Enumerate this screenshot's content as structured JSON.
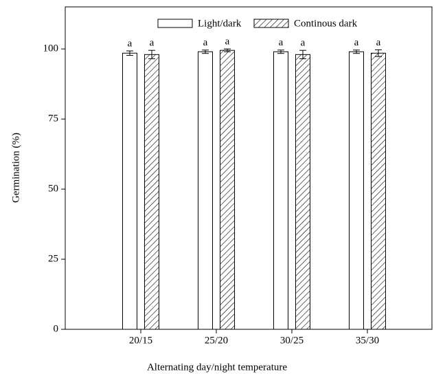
{
  "chart_data": {
    "type": "bar",
    "x_label": "Alternating day/night temperature",
    "y_label": "Germination (%)",
    "categories": [
      "20/15",
      "25/20",
      "30/25",
      "35/30"
    ],
    "series": [
      {
        "name": "Light/dark",
        "color": "#ffffff",
        "hatch": false,
        "values": [
          98.5,
          99,
          99,
          99
        ],
        "errors": [
          0.8,
          0.6,
          0.6,
          0.6
        ],
        "labels": [
          "a",
          "a",
          "a",
          "a"
        ]
      },
      {
        "name": "Continous dark",
        "color": "#ffffff",
        "hatch": true,
        "values": [
          98,
          99.5,
          98,
          98.5
        ],
        "errors": [
          1.5,
          0.5,
          1.5,
          1.2
        ],
        "labels": [
          "a",
          "a",
          "a",
          "a"
        ]
      }
    ],
    "ylim": [
      0,
      115
    ],
    "yticks": [
      0,
      25,
      50,
      75,
      100
    ],
    "grid": false,
    "legend": "top"
  }
}
